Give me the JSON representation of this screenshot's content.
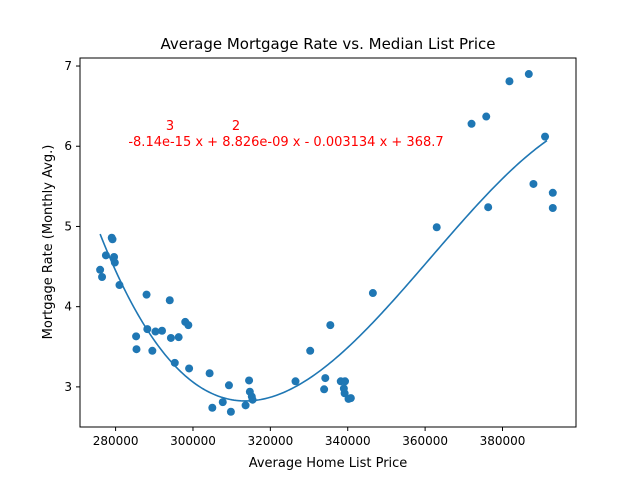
{
  "chart_data": {
    "type": "scatter",
    "title": "Average Mortgage Rate vs. Median List Price",
    "xlabel": "Average Home List Price",
    "ylabel": "Mortgage Rate (Monthly Avg.)",
    "xlim": [
      270800,
      399000
    ],
    "ylim": [
      2.5,
      7.1
    ],
    "xticks": [
      280000,
      300000,
      320000,
      340000,
      360000,
      380000
    ],
    "xtick_labels": [
      "280000",
      "300000",
      "320000",
      "340000",
      "360000",
      "380000"
    ],
    "yticks": [
      3,
      4,
      5,
      6,
      7
    ],
    "ytick_labels": [
      "3",
      "4",
      "5",
      "6",
      "7"
    ],
    "grid": false,
    "point_color": "#1f77b4",
    "fit_color": "#1f77b4",
    "annotation_color": "#ff0000",
    "points": [
      [
        276000,
        4.46
      ],
      [
        276500,
        4.37
      ],
      [
        277500,
        4.64
      ],
      [
        279000,
        4.86
      ],
      [
        279200,
        4.84
      ],
      [
        279600,
        4.62
      ],
      [
        279800,
        4.55
      ],
      [
        281000,
        4.27
      ],
      [
        285300,
        3.63
      ],
      [
        285400,
        3.47
      ],
      [
        288000,
        4.15
      ],
      [
        288200,
        3.72
      ],
      [
        289500,
        3.45
      ],
      [
        290300,
        3.69
      ],
      [
        292000,
        3.7
      ],
      [
        294000,
        4.08
      ],
      [
        294300,
        3.61
      ],
      [
        295300,
        3.3
      ],
      [
        296300,
        3.62
      ],
      [
        298000,
        3.81
      ],
      [
        298800,
        3.77
      ],
      [
        299000,
        3.23
      ],
      [
        304300,
        3.17
      ],
      [
        305000,
        2.74
      ],
      [
        307700,
        2.81
      ],
      [
        309300,
        3.02
      ],
      [
        309800,
        2.69
      ],
      [
        313600,
        2.77
      ],
      [
        314500,
        3.08
      ],
      [
        314700,
        2.94
      ],
      [
        315200,
        2.88
      ],
      [
        315400,
        2.84
      ],
      [
        326500,
        3.07
      ],
      [
        330300,
        3.45
      ],
      [
        333900,
        2.97
      ],
      [
        334200,
        3.11
      ],
      [
        335500,
        3.77
      ],
      [
        338200,
        3.07
      ],
      [
        339000,
        2.98
      ],
      [
        339200,
        2.92
      ],
      [
        339300,
        3.07
      ],
      [
        340200,
        2.85
      ],
      [
        340800,
        2.86
      ],
      [
        346500,
        4.17
      ],
      [
        363000,
        4.99
      ],
      [
        372000,
        6.28
      ],
      [
        375800,
        6.37
      ],
      [
        376300,
        5.24
      ],
      [
        381800,
        6.81
      ],
      [
        386800,
        6.9
      ],
      [
        388000,
        5.53
      ],
      [
        391000,
        6.12
      ],
      [
        393000,
        5.42
      ],
      [
        393000,
        5.23
      ]
    ],
    "fit": {
      "degree": 3,
      "coefficients": [
        -8.14e-15,
        8.826e-09,
        -0.003134,
        368.7
      ],
      "x_range": [
        276000,
        391500
      ]
    },
    "annotation": {
      "exponent_3": "3",
      "exponent_2": "2",
      "equation": "-8.14e-15 x + 8.826e-09 x - 0.003134 x + 368.7"
    }
  }
}
